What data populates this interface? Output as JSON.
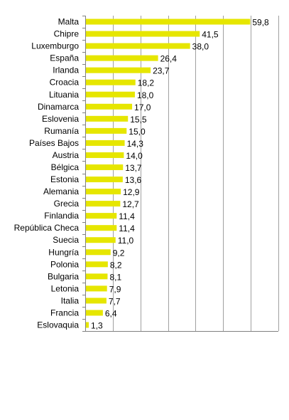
{
  "chart_data": {
    "type": "bar",
    "orientation": "horizontal",
    "categories": [
      "Malta",
      "Chipre",
      "Luxemburgo",
      "España",
      "Irlanda",
      "Croacia",
      "Lituania",
      "Dinamarca",
      "Eslovenia",
      "Rumanía",
      "Países Bajos",
      "Austria",
      "Bélgica",
      "Estonia",
      "Alemania",
      "Grecia",
      "Finlandia",
      "República Checa",
      "Suecia",
      "Hungría",
      "Polonia",
      "Bulgaria",
      "Letonia",
      "Italia",
      "Francia",
      "Eslovaquia"
    ],
    "values": [
      59.8,
      41.5,
      38.0,
      26.4,
      23.7,
      18.2,
      18.0,
      17.0,
      15.5,
      15.0,
      14.3,
      14.0,
      13.7,
      13.6,
      12.9,
      12.7,
      11.4,
      11.4,
      11.0,
      9.2,
      8.2,
      8.1,
      7.9,
      7.7,
      6.4,
      1.3
    ],
    "value_labels": [
      "59,8",
      "41,5",
      "38,0",
      "26,4",
      "23,7",
      "18,2",
      "18,0",
      "17,0",
      "15,5",
      "15,0",
      "14,3",
      "14,0",
      "13,7",
      "13,6",
      "12,9",
      "12,7",
      "11,4",
      "11,4",
      "11,0",
      "9,2",
      "8,2",
      "8,1",
      "7,9",
      "7,7",
      "6,4",
      "1,3"
    ],
    "xlim": [
      0,
      70
    ],
    "x_grid_step": 10,
    "grid": true,
    "bar_color": "#e6e600"
  }
}
